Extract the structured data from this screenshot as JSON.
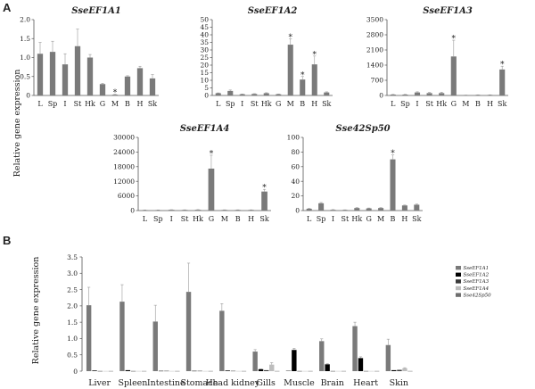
{
  "figure": {
    "panel_a_label": "A",
    "panel_b_label": "B",
    "ylabel_a": "Relative gene expression",
    "ylabel_b": "Relative gene expression",
    "colors": {
      "grey_bar": "#7a7a7a",
      "sseef1a2": "#000000",
      "sseef1a3": "#3a3a3a",
      "sseef1a4": "#bdbdbd",
      "sse42sp50": "#6e6e6e",
      "error": "#999999"
    }
  },
  "chart_data": [
    {
      "type": "bar",
      "title": "SseEF1A1",
      "categories": [
        "L",
        "Sp",
        "I",
        "St",
        "Hk",
        "G",
        "M",
        "B",
        "H",
        "Sk"
      ],
      "values": [
        1.1,
        1.15,
        0.82,
        1.3,
        1.0,
        0.3,
        0.02,
        0.5,
        0.72,
        0.45
      ],
      "errors": [
        0.3,
        0.28,
        0.28,
        0.45,
        0.08,
        0.02,
        0.01,
        0.02,
        0.05,
        0.1
      ],
      "significant": [
        "M"
      ],
      "yticks": [
        "0",
        "0.5",
        "1.0",
        "1.5",
        "2.0"
      ],
      "ylim": [
        0,
        2.0
      ]
    },
    {
      "type": "bar",
      "title": "SseEF1A2",
      "categories": [
        "L",
        "Sp",
        "I",
        "St",
        "Hk",
        "G",
        "M",
        "B",
        "H",
        "Sk"
      ],
      "values": [
        1.5,
        3.0,
        0.8,
        1.0,
        1.5,
        0.8,
        33.5,
        10.5,
        20.5,
        2.0
      ],
      "errors": [
        0.2,
        0.6,
        0.2,
        0.2,
        0.3,
        0.2,
        4.0,
        2.0,
        5.5,
        0.4
      ],
      "significant": [
        "M",
        "B",
        "H"
      ],
      "yticks": [
        "0",
        "5",
        "10",
        "15",
        "20",
        "25",
        "30",
        "35",
        "40",
        "45",
        "50"
      ],
      "ylim": [
        0,
        50
      ]
    },
    {
      "type": "bar",
      "title": "SseEF1A3",
      "categories": [
        "L",
        "Sp",
        "I",
        "St",
        "Hk",
        "G",
        "M",
        "B",
        "H",
        "Sk"
      ],
      "values": [
        40,
        40,
        140,
        110,
        110,
        1800,
        15,
        25,
        25,
        1200
      ],
      "errors": [
        10,
        10,
        30,
        30,
        40,
        750,
        5,
        5,
        5,
        150
      ],
      "significant": [
        "G",
        "Sk"
      ],
      "yticks": [
        "0",
        "700",
        "1400",
        "2100",
        "2800",
        "3500"
      ],
      "ylim": [
        0,
        3500
      ]
    },
    {
      "type": "bar",
      "title": "SseEF1A4",
      "categories": [
        "L",
        "Sp",
        "I",
        "St",
        "Hk",
        "G",
        "M",
        "B",
        "H",
        "Sk"
      ],
      "values": [
        200,
        200,
        300,
        250,
        300,
        17200,
        250,
        250,
        250,
        7800
      ],
      "errors": [
        50,
        50,
        50,
        50,
        80,
        5500,
        50,
        50,
        50,
        900
      ],
      "significant": [
        "G",
        "Sk"
      ],
      "yticks": [
        "0",
        "6000",
        "12000",
        "18000",
        "24000",
        "30000"
      ],
      "ylim": [
        0,
        30000
      ]
    },
    {
      "type": "bar",
      "title": "Sse42Sp50",
      "categories": [
        "L",
        "Sp",
        "I",
        "St",
        "Hk",
        "G",
        "M",
        "B",
        "H",
        "Sk"
      ],
      "values": [
        2.5,
        10,
        1.0,
        0.8,
        3.5,
        3.0,
        3.5,
        70,
        7,
        8
      ],
      "errors": [
        0.5,
        1.0,
        0.3,
        0.2,
        0.5,
        0.5,
        0.5,
        6.0,
        0.5,
        0.8
      ],
      "significant": [
        "B"
      ],
      "yticks": [
        "0",
        "20",
        "40",
        "60",
        "80",
        "100"
      ],
      "ylim": [
        0,
        100
      ]
    },
    {
      "type": "bar",
      "categories": [
        "Liver",
        "Spleen",
        "Intestine",
        "Stomach",
        "Head kidney",
        "Gills",
        "Muscle",
        "Brain",
        "Heart",
        "Skin"
      ],
      "series": [
        {
          "name": "SseEF1A1",
          "values": [
            2.02,
            2.13,
            1.52,
            2.43,
            1.85,
            0.6,
            0.02,
            0.92,
            1.38,
            0.8
          ],
          "errors": [
            0.55,
            0.52,
            0.5,
            0.88,
            0.22,
            0.06,
            0.01,
            0.07,
            0.12,
            0.18
          ]
        },
        {
          "name": "SseEF1A2",
          "values": [
            0.02,
            0.03,
            0.01,
            0.01,
            0.02,
            0.06,
            0.65,
            0.21,
            0.4,
            0.03
          ],
          "errors": [
            0.005,
            0.01,
            0.005,
            0.005,
            0.005,
            0.01,
            0.05,
            0.02,
            0.04,
            0.005
          ]
        },
        {
          "name": "SseEF1A3",
          "values": [
            0.005,
            0.005,
            0.01,
            0.01,
            0.01,
            0.03,
            0.005,
            0.005,
            0.005,
            0.04
          ],
          "errors": [
            0.002,
            0.002,
            0.003,
            0.003,
            0.003,
            0.01,
            0.002,
            0.002,
            0.002,
            0.01
          ]
        },
        {
          "name": "SseEF1A4",
          "values": [
            0.005,
            0.005,
            0.005,
            0.005,
            0.005,
            0.2,
            0.005,
            0.005,
            0.005,
            0.09
          ],
          "errors": [
            0.002,
            0.002,
            0.002,
            0.002,
            0.002,
            0.06,
            0.002,
            0.002,
            0.002,
            0.015
          ]
        },
        {
          "name": "Sse42Sp50",
          "values": [
            0.005,
            0.005,
            0.005,
            0.005,
            0.005,
            0.005,
            0.005,
            0.005,
            0.005,
            0.005
          ],
          "errors": [
            0.002,
            0.002,
            0.002,
            0.002,
            0.002,
            0.002,
            0.002,
            0.002,
            0.002,
            0.002
          ]
        }
      ],
      "yticks": [
        "0",
        "0.5",
        "1.0",
        "1.5",
        "2.0",
        "2.5",
        "3.0",
        "3.5"
      ],
      "ylim": [
        0,
        3.5
      ],
      "legend": "right"
    }
  ]
}
